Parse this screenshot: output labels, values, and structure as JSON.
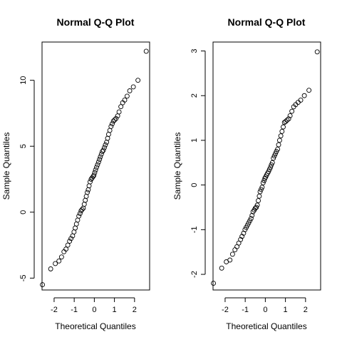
{
  "chart_data": [
    {
      "type": "scatter",
      "title": "Normal Q-Q Plot",
      "xlabel": "Theoretical Quantiles",
      "ylabel": "Sample Quantiles",
      "xlim": [
        -2.6,
        2.75
      ],
      "ylim": [
        -5.9,
        12.9
      ],
      "xticks": [
        -2,
        -1,
        0,
        1,
        2
      ],
      "yticks": [
        -5,
        0,
        5,
        10
      ],
      "grid": false,
      "points": {
        "x": [
          -2.58,
          -2.17,
          -1.94,
          -1.76,
          -1.63,
          -1.51,
          -1.41,
          -1.32,
          -1.23,
          -1.16,
          -1.08,
          -1.01,
          -0.95,
          -0.89,
          -0.83,
          -0.77,
          -0.71,
          -0.66,
          -0.61,
          -0.55,
          -0.5,
          -0.45,
          -0.4,
          -0.35,
          -0.3,
          -0.26,
          -0.21,
          -0.16,
          -0.11,
          -0.06,
          -0.02,
          0.02,
          0.06,
          0.11,
          0.16,
          0.21,
          0.26,
          0.3,
          0.35,
          0.4,
          0.45,
          0.5,
          0.55,
          0.61,
          0.66,
          0.71,
          0.77,
          0.83,
          0.89,
          0.95,
          1.01,
          1.08,
          1.16,
          1.23,
          1.32,
          1.41,
          1.51,
          1.63,
          1.76,
          1.94,
          2.17,
          2.58
        ],
        "y": [
          -5.5,
          -4.3,
          -3.9,
          -3.7,
          -3.4,
          -3.0,
          -2.8,
          -2.5,
          -2.2,
          -2.0,
          -1.8,
          -1.5,
          -1.2,
          -0.9,
          -0.6,
          -0.3,
          -0.1,
          0.1,
          0.2,
          0.3,
          0.6,
          0.9,
          1.2,
          1.5,
          1.7,
          2.0,
          2.3,
          2.5,
          2.6,
          2.7,
          2.8,
          3.0,
          3.2,
          3.4,
          3.6,
          3.8,
          4.0,
          4.2,
          4.4,
          4.6,
          4.7,
          4.9,
          5.1,
          5.3,
          5.6,
          5.9,
          6.2,
          6.5,
          6.7,
          6.9,
          7.0,
          7.1,
          7.3,
          7.6,
          8.0,
          8.3,
          8.5,
          8.8,
          9.2,
          9.5,
          10.0,
          12.2
        ]
      }
    },
    {
      "type": "scatter",
      "title": "Normal Q-Q Plot",
      "xlabel": "Theoretical Quantiles",
      "ylabel": "Sample Quantiles",
      "xlim": [
        -2.6,
        2.75
      ],
      "ylim": [
        -2.35,
        3.2
      ],
      "xticks": [
        -2,
        -1,
        0,
        1,
        2
      ],
      "yticks": [
        -2,
        -1,
        0,
        1,
        2,
        3
      ],
      "grid": false,
      "points": {
        "x": [
          -2.58,
          -2.17,
          -1.94,
          -1.76,
          -1.63,
          -1.51,
          -1.41,
          -1.32,
          -1.23,
          -1.16,
          -1.08,
          -1.01,
          -0.95,
          -0.89,
          -0.83,
          -0.77,
          -0.71,
          -0.66,
          -0.61,
          -0.55,
          -0.5,
          -0.45,
          -0.4,
          -0.35,
          -0.3,
          -0.26,
          -0.21,
          -0.16,
          -0.11,
          -0.06,
          -0.02,
          0.02,
          0.06,
          0.11,
          0.16,
          0.21,
          0.26,
          0.3,
          0.35,
          0.4,
          0.45,
          0.5,
          0.55,
          0.61,
          0.66,
          0.71,
          0.77,
          0.83,
          0.89,
          0.95,
          1.01,
          1.08,
          1.16,
          1.23,
          1.32,
          1.41,
          1.51,
          1.63,
          1.76,
          1.94,
          2.17,
          2.58
        ],
        "y": [
          -2.2,
          -1.86,
          -1.72,
          -1.68,
          -1.55,
          -1.45,
          -1.38,
          -1.3,
          -1.22,
          -1.15,
          -1.08,
          -1.0,
          -0.95,
          -0.9,
          -0.85,
          -0.8,
          -0.75,
          -0.68,
          -0.6,
          -0.56,
          -0.52,
          -0.5,
          -0.45,
          -0.35,
          -0.25,
          -0.15,
          -0.1,
          -0.05,
          0.05,
          0.1,
          0.15,
          0.18,
          0.22,
          0.26,
          0.3,
          0.35,
          0.4,
          0.45,
          0.5,
          0.6,
          0.65,
          0.7,
          0.75,
          0.8,
          0.9,
          1.0,
          1.1,
          1.2,
          1.3,
          1.4,
          1.42,
          1.45,
          1.48,
          1.55,
          1.65,
          1.75,
          1.8,
          1.85,
          1.9,
          2.0,
          2.12,
          2.98
        ]
      }
    }
  ]
}
